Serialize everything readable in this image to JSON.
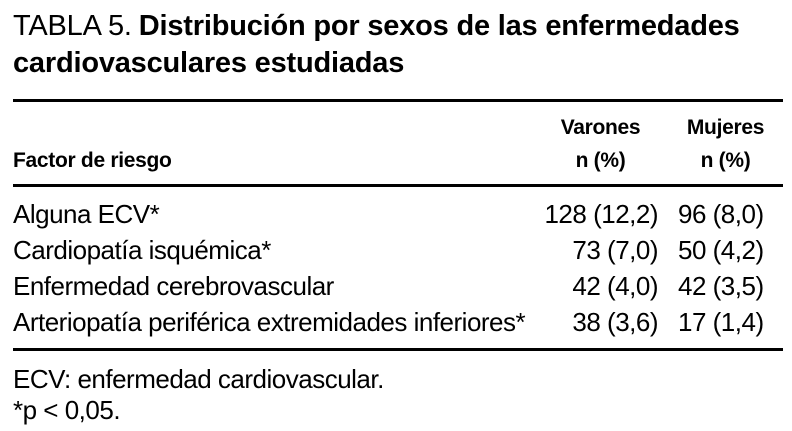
{
  "colors": {
    "background": "#ffffff",
    "text": "#000000",
    "rule": "#000000"
  },
  "title": {
    "label": "TABLA 5.",
    "caption": "Distribución por sexos de las enfermedades cardiovasculares estudiadas"
  },
  "table": {
    "columns": [
      {
        "label": "Factor de riesgo",
        "sublabel": ""
      },
      {
        "label": "Varones",
        "sublabel": "n (%)"
      },
      {
        "label": "Mujeres",
        "sublabel": "n (%)"
      }
    ],
    "rows": [
      {
        "factor": "Alguna ECV*",
        "varones": "128 (12,2)",
        "mujeres": "96 (8,0)"
      },
      {
        "factor": "Cardiopatía isquémica*",
        "varones": "73 (7,0)",
        "mujeres": "50 (4,2)"
      },
      {
        "factor": "Enfermedad cerebrovascular",
        "varones": "42 (4,0)",
        "mujeres": "42 (3,5)"
      },
      {
        "factor": "Arteriopatía periférica extremidades inferiores*",
        "varones": "38 (3,6)",
        "mujeres": "17 (1,4)"
      }
    ]
  },
  "footnotes": {
    "abbreviation": "ECV: enfermedad cardiovascular.",
    "significance": "*p < 0,05."
  }
}
